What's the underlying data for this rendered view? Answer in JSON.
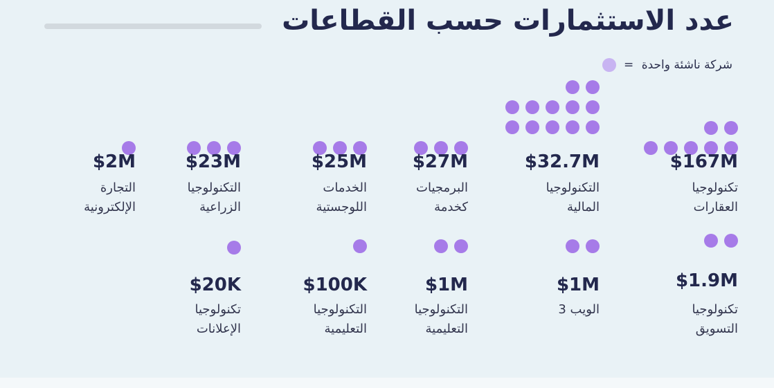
{
  "title": "عدد الاستثمارات حسب القطاعات",
  "legend": {
    "text": "شركة ناشئة واحدة",
    "equals": "="
  },
  "colors": {
    "background": "#e9f2f6",
    "dot": "#a67be8",
    "legend_dot": "#c8b4f2",
    "text_dark": "#23284d"
  },
  "sectors": [
    {
      "value": "$167M",
      "label": "تكنولوجيا\nالعقارات",
      "dots": 7
    },
    {
      "value": "$32.7M",
      "label": "التكنولوجيا\nالمالية",
      "dots": 12
    },
    {
      "value": "$27M",
      "label": "البرمجيات\nكخدمة",
      "dots": 3
    },
    {
      "value": "$25M",
      "label": "الخدمات\nاللوجستية",
      "dots": 3
    },
    {
      "value": "$23M",
      "label": "التكنولوجيا\nالزراعية",
      "dots": 3
    },
    {
      "value": "$2M",
      "label": "التجارة\nالإلكترونية",
      "dots": 1
    },
    {
      "value": "$1.9M",
      "label": "تكنولوجيا\nالتسويق",
      "dots": 2
    },
    {
      "value": "$1M",
      "label": "الويب 3",
      "dots": 2
    },
    {
      "value": "$1M",
      "label": "التكنولوجيا\nالتعليمية",
      "dots": 2
    },
    {
      "value": "$100K",
      "label": "التكنولوجيا\nالتعليمية",
      "dots": 1
    },
    {
      "value": "$20K",
      "label": "تكنولوجيا\nالإعلانات",
      "dots": 1
    }
  ]
}
